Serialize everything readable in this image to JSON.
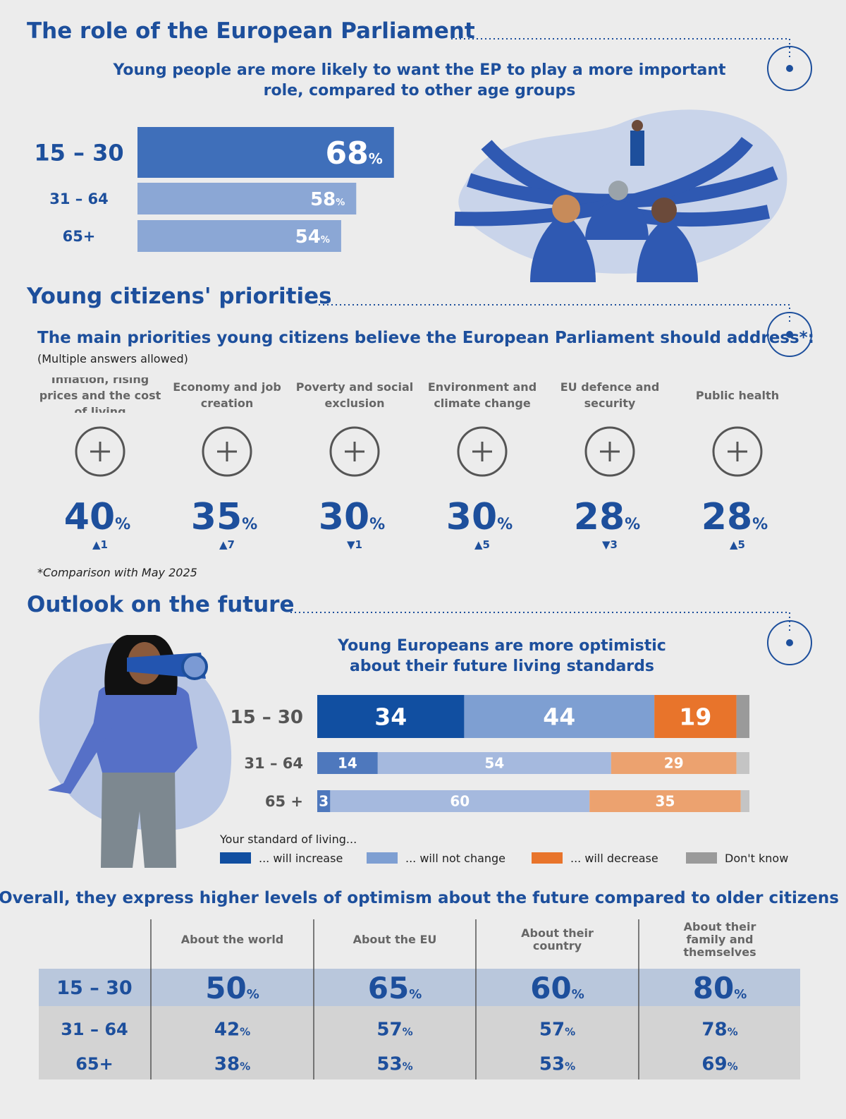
{
  "sections": [
    {
      "title": "The role of the European Parliament"
    },
    {
      "title": "Young citizens' priorities"
    },
    {
      "title": "Outlook on the future"
    }
  ],
  "chart_data": [
    {
      "type": "hbar",
      "title": "Young people are more likely to want the EP to play a more important role, compared to other age groups",
      "categories": [
        "15 – 30",
        "31 – 64",
        "65+"
      ],
      "values": [
        68,
        58,
        54
      ],
      "unit": "%",
      "colors": [
        "#3f6fba",
        "#8ba7d5",
        "#8ba7d5"
      ],
      "xlim": [
        0,
        100
      ]
    },
    {
      "type": "kpi",
      "title": "The main priorities young citizens believe the European Parliament should address*:",
      "subtitle": "(Multiple answers allowed)",
      "categories": [
        "Inflation, rising prices and the cost of living",
        "Economy and job creation",
        "Poverty and social exclusion",
        "Environment and climate change",
        "EU defence and security",
        "Public health"
      ],
      "values": [
        40,
        35,
        30,
        30,
        28,
        28
      ],
      "unit": "%",
      "changes": [
        "▲1",
        "▲7",
        "▼1",
        "▲5",
        "▼3",
        "▲5"
      ],
      "note": "*Comparison with May 2025"
    },
    {
      "type": "stacked-hbar",
      "title": "Young Europeans are more optimistic about their future living standards",
      "categories": [
        "15 – 30",
        "31 – 64",
        "65 +"
      ],
      "xlim": [
        0,
        100
      ],
      "legend_title": "Your standard of living...",
      "series": [
        {
          "name": "... will increase",
          "color": "#114fa1",
          "light_color": "#4e78bd",
          "values": [
            34,
            14,
            3
          ],
          "show_values": true
        },
        {
          "name": "... will not change",
          "color": "#7e9fd2",
          "light_color": "#a5b9de",
          "values": [
            44,
            54,
            60
          ],
          "show_values": true
        },
        {
          "name": "... will decrease",
          "color": "#e8742b",
          "light_color": "#eca26f",
          "values": [
            19,
            29,
            35
          ],
          "show_values": true
        },
        {
          "name": "Don't know",
          "color": "#9a9a9a",
          "light_color": "#c4c4c4",
          "values": [
            3,
            3,
            2
          ],
          "show_values": false
        }
      ]
    }
  ],
  "table": {
    "title": "Overall, they express higher levels of optimism about the future compared to older citizens",
    "columns": [
      "About the world",
      "About the EU",
      "About their country",
      "About their family and themselves"
    ],
    "unit": "%",
    "rows": [
      {
        "label": "15 – 30",
        "values": [
          50,
          65,
          60,
          80
        ]
      },
      {
        "label": "31 – 64",
        "values": [
          42,
          57,
          57,
          78
        ]
      },
      {
        "label": "65+",
        "values": [
          38,
          53,
          53,
          69
        ]
      }
    ]
  }
}
